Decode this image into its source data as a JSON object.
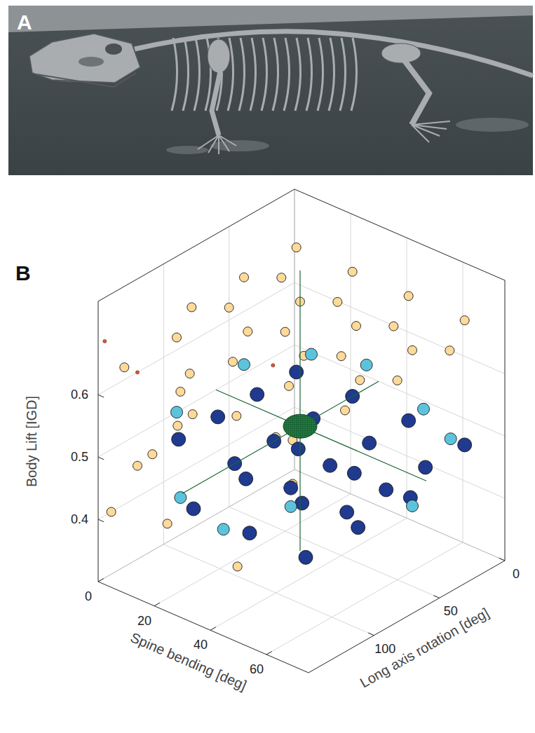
{
  "panel_labels": [
    "A",
    "B"
  ],
  "chart_data": {
    "type": "scatter3d",
    "x_label": "Spine bending [deg]",
    "y_label": "Long axis rotation [deg]",
    "z_label": "Body Lift [IGD]",
    "xlim": [
      0,
      75
    ],
    "xticks": [
      0,
      20,
      40,
      60
    ],
    "ylim": [
      0,
      150
    ],
    "yticks": [
      0,
      50,
      100
    ],
    "zlim": [
      0.3,
      0.75
    ],
    "zticks": [
      0.4,
      0.5,
      0.6
    ],
    "grid": true,
    "series": [
      {
        "color": "#fdd99a",
        "marker": "small-circle",
        "x": [
          10,
          10,
          10,
          30,
          30,
          30,
          50,
          50,
          50,
          70,
          70,
          70,
          0,
          0,
          0,
          0,
          20,
          20,
          20,
          20,
          40,
          40,
          40,
          40,
          60,
          60,
          60,
          60,
          0,
          0,
          5,
          10,
          0,
          20,
          15,
          45,
          40,
          60
        ],
        "y": [
          20,
          60,
          100,
          20,
          60,
          100,
          20,
          60,
          100,
          20,
          60,
          100,
          10,
          50,
          90,
          130,
          10,
          50,
          90,
          130,
          10,
          50,
          90,
          130,
          10,
          50,
          90,
          130,
          140,
          120,
          100,
          130,
          80,
          140,
          110,
          140,
          100,
          130
        ],
        "z": [
          0.7,
          0.7,
          0.7,
          0.7,
          0.7,
          0.7,
          0.7,
          0.7,
          0.7,
          0.7,
          0.7,
          0.7,
          0.62,
          0.62,
          0.62,
          0.62,
          0.62,
          0.62,
          0.62,
          0.62,
          0.62,
          0.62,
          0.62,
          0.62,
          0.62,
          0.62,
          0.62,
          0.62,
          0.4,
          0.45,
          0.5,
          0.5,
          0.55,
          0.42,
          0.55,
          0.4,
          0.55,
          0.55
        ]
      },
      {
        "color": "#1f3a8f",
        "marker": "large-circle",
        "x": [
          10,
          10,
          10,
          10,
          30,
          30,
          30,
          30,
          50,
          50,
          50,
          50,
          70,
          70,
          70,
          70,
          20,
          20,
          20,
          40,
          40,
          40,
          60,
          60,
          60
        ],
        "y": [
          20,
          50,
          80,
          110,
          20,
          50,
          80,
          110,
          20,
          50,
          80,
          110,
          20,
          50,
          80,
          110,
          40,
          80,
          120,
          40,
          80,
          120,
          40,
          80,
          120
        ],
        "z": [
          0.5,
          0.5,
          0.5,
          0.5,
          0.5,
          0.5,
          0.5,
          0.5,
          0.5,
          0.5,
          0.5,
          0.5,
          0.5,
          0.5,
          0.5,
          0.5,
          0.42,
          0.42,
          0.42,
          0.42,
          0.42,
          0.42,
          0.42,
          0.42,
          0.42
        ]
      },
      {
        "color": "#5cc3dd",
        "marker": "circle",
        "x": [
          20,
          60,
          65,
          40,
          20,
          0,
          50,
          70,
          35,
          10
        ],
        "y": [
          30,
          30,
          20,
          140,
          130,
          90,
          110,
          60,
          20,
          60
        ],
        "z": [
          0.56,
          0.55,
          0.5,
          0.45,
          0.45,
          0.5,
          0.47,
          0.45,
          0.56,
          0.56
        ]
      },
      {
        "color": "#e4572e",
        "marker": "dot",
        "x": [
          0,
          0,
          25
        ],
        "y": [
          145,
          120,
          70
        ],
        "z": [
          0.68,
          0.6,
          0.6
        ]
      }
    ],
    "reference": {
      "x": 30,
      "y": 60,
      "z": 0.5,
      "color": "#1b6636",
      "marker": "crosshair"
    }
  }
}
